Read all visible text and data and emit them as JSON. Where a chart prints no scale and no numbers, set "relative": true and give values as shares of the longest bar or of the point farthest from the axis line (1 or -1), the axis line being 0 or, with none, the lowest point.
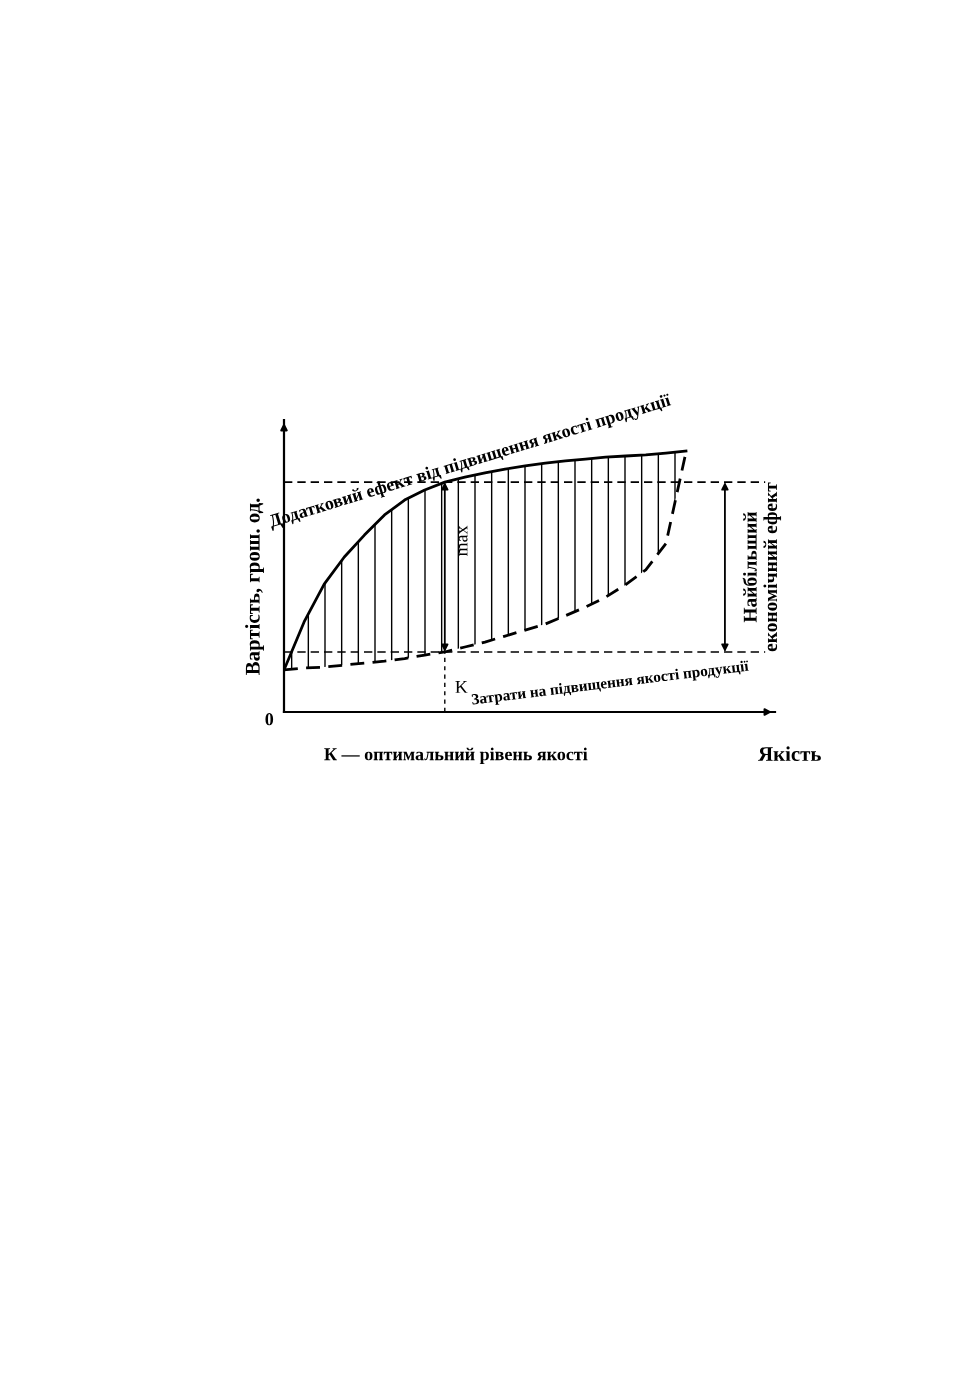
{
  "chart_data": {
    "type": "line",
    "relative": true,
    "xlabel": "Якість",
    "ylabel": "Вартість, грош. од.",
    "categories": [
      null,
      null,
      null,
      null,
      null,
      null,
      null,
      null,
      null,
      null,
      null,
      null,
      null,
      null,
      null,
      null,
      null,
      null,
      null,
      null,
      null
    ],
    "series": [
      {
        "name": "Додатковий ефект від підвищення якості продукції",
        "color": "#000000",
        "line_style": "solid",
        "values": [
          0.161,
          0.345,
          0.49,
          0.594,
          0.678,
          0.755,
          0.812,
          0.851,
          0.881,
          0.9,
          0.916,
          0.931,
          0.943,
          0.954,
          0.962,
          0.969,
          0.977,
          0.981,
          0.985,
          0.992,
          1.0
        ],
        "lower": [
          0.161,
          0.169,
          0.172,
          0.18,
          0.187,
          0.195,
          0.205,
          0.218,
          0.23,
          0.249,
          0.268,
          0.291,
          0.314,
          0.337,
          0.369,
          0.402,
          0.44,
          0.488,
          0.545,
          0.645,
          0.996
        ],
        "upper": [
          0.161,
          0.345,
          0.49,
          0.594,
          0.678,
          0.755,
          0.812,
          0.851,
          0.881,
          0.9,
          0.916,
          0.931,
          0.943,
          0.954,
          0.962,
          0.969,
          0.977,
          0.981,
          0.985,
          0.992,
          1.0
        ]
      },
      {
        "name": "Затрати на підвищення якості продукції",
        "color": "#000000",
        "line_style": "dashed",
        "values": [
          0.161,
          0.169,
          0.172,
          0.18,
          0.187,
          0.195,
          0.205,
          0.218,
          0.23,
          0.249,
          0.268,
          0.291,
          0.314,
          0.337,
          0.369,
          0.402,
          0.44,
          0.488,
          0.545,
          0.645,
          0.996
        ]
      }
    ],
    "ref_lines": [
      {
        "axis": "y",
        "value": 0.881,
        "line_style": "dashed",
        "color": "#000000"
      },
      {
        "axis": "y",
        "value": 0.23,
        "line_style": "dashed",
        "color": "#000000"
      }
    ],
    "annotations": [
      "max",
      "Найбільший\nекономічний ефект",
      "К — оптимальний рівень якості",
      "0",
      "K"
    ]
  }
}
